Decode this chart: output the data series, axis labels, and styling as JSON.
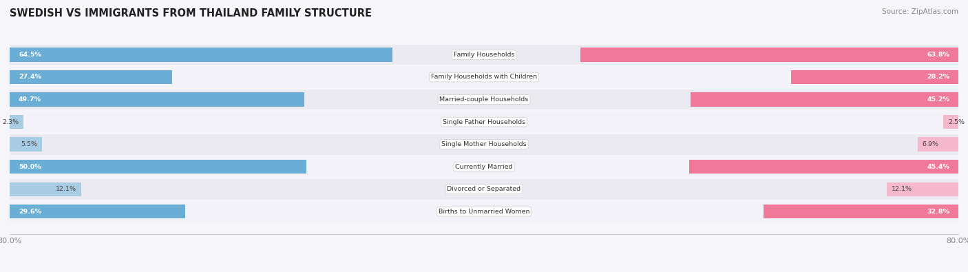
{
  "title": "SWEDISH VS IMMIGRANTS FROM THAILAND FAMILY STRUCTURE",
  "source": "Source: ZipAtlas.com",
  "categories": [
    "Family Households",
    "Family Households with Children",
    "Married-couple Households",
    "Single Father Households",
    "Single Mother Households",
    "Currently Married",
    "Divorced or Separated",
    "Births to Unmarried Women"
  ],
  "swedish_values": [
    64.5,
    27.4,
    49.7,
    2.3,
    5.5,
    50.0,
    12.1,
    29.6
  ],
  "thailand_values": [
    63.8,
    28.2,
    45.2,
    2.5,
    6.9,
    45.4,
    12.1,
    32.8
  ],
  "swedish_color": "#6aaed6",
  "thailand_color": "#f07898",
  "swedish_color_light": "#a8cce4",
  "thailand_color_light": "#f5b8cc",
  "axis_max": 80.0,
  "legend_labels": [
    "Swedish",
    "Immigrants from Thailand"
  ],
  "row_bg_even": "#eaeaf0",
  "row_bg_odd": "#f2f2f8",
  "background_color": "#f5f5fa"
}
